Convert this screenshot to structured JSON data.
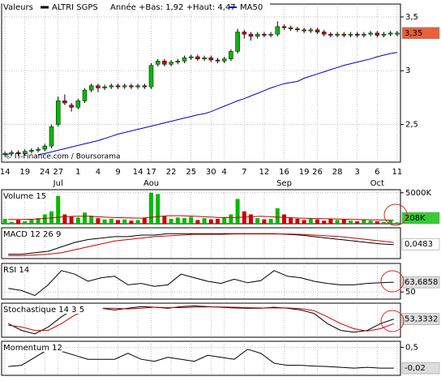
{
  "chart_data": [
    {
      "type": "candlestick",
      "legend_label": "Valeurs",
      "name": "ALTRI SGPS",
      "color": "#000000",
      "range_note": "Année +Bas: 1,92 +Haut: 4,47",
      "source": "© IT-Finance.com / Boursorama",
      "up_color": "#00bb00",
      "down_color": "#cc0000",
      "grid": true,
      "categories": [
        "14",
        null,
        null,
        "19",
        null,
        null,
        "24",
        null,
        "27",
        null,
        null,
        "1",
        null,
        null,
        "4",
        null,
        null,
        "9",
        null,
        null,
        "14",
        null,
        "17",
        null,
        null,
        "22",
        null,
        null,
        "25",
        null,
        null,
        "30",
        null,
        "4",
        null,
        null,
        "7",
        null,
        null,
        "12",
        null,
        null,
        "16",
        null,
        null,
        "19",
        null,
        "26",
        null,
        null,
        "28",
        null,
        null,
        "3",
        null,
        null,
        "6",
        null,
        null,
        "11"
      ],
      "months": [
        null,
        null,
        null,
        null,
        null,
        null,
        null,
        null,
        "Jul",
        null,
        null,
        null,
        null,
        null,
        null,
        null,
        null,
        null,
        null,
        null,
        null,
        null,
        "Aou",
        null,
        null,
        null,
        null,
        null,
        null,
        null,
        null,
        null,
        null,
        null,
        null,
        null,
        null,
        null,
        null,
        null,
        null,
        null,
        "Sep",
        null,
        null,
        null,
        null,
        null,
        null,
        null,
        null,
        null,
        null,
        null,
        null,
        null,
        "Oct",
        null,
        null,
        null
      ],
      "open": [
        2.22,
        2.23,
        2.24,
        2.23,
        2.25,
        2.26,
        2.27,
        2.3,
        2.5,
        2.72,
        2.68,
        2.66,
        2.72,
        2.82,
        2.86,
        2.84,
        2.85,
        2.86,
        2.85,
        2.86,
        2.85,
        2.86,
        2.85,
        3.06,
        3.09,
        3.06,
        3.08,
        3.09,
        3.12,
        3.13,
        3.11,
        3.12,
        3.1,
        3.09,
        3.11,
        3.18,
        3.36,
        3.34,
        3.32,
        3.34,
        3.33,
        3.34,
        3.41,
        3.4,
        3.39,
        3.38,
        3.37,
        3.38,
        3.36,
        3.34,
        3.33,
        3.34,
        3.33,
        3.34,
        3.33,
        3.34,
        3.35,
        3.33,
        3.34,
        3.34
      ],
      "high": [
        2.25,
        2.26,
        2.26,
        2.27,
        2.28,
        2.29,
        2.32,
        2.5,
        2.76,
        2.78,
        2.7,
        2.74,
        2.84,
        2.88,
        2.88,
        2.87,
        2.88,
        2.88,
        2.88,
        2.88,
        2.88,
        2.88,
        3.07,
        3.11,
        3.11,
        3.1,
        3.11,
        3.14,
        3.15,
        3.15,
        3.14,
        3.14,
        3.12,
        3.13,
        3.2,
        3.39,
        3.38,
        3.36,
        3.36,
        3.36,
        3.36,
        3.46,
        3.43,
        3.42,
        3.41,
        3.4,
        3.4,
        3.4,
        3.38,
        3.36,
        3.36,
        3.36,
        3.36,
        3.36,
        3.36,
        3.37,
        3.37,
        3.36,
        3.37,
        3.37
      ],
      "low": [
        2.2,
        2.21,
        2.21,
        2.21,
        2.23,
        2.24,
        2.25,
        2.28,
        2.48,
        2.68,
        2.62,
        2.64,
        2.7,
        2.8,
        2.8,
        2.82,
        2.83,
        2.83,
        2.83,
        2.83,
        2.83,
        2.83,
        2.83,
        3.04,
        3.04,
        3.04,
        3.06,
        3.07,
        3.1,
        3.09,
        3.09,
        3.08,
        3.07,
        3.07,
        3.09,
        3.16,
        3.3,
        3.28,
        3.3,
        3.31,
        3.31,
        3.32,
        3.38,
        3.37,
        3.36,
        3.35,
        3.35,
        3.34,
        3.32,
        3.31,
        3.31,
        3.31,
        3.31,
        3.31,
        3.31,
        3.32,
        3.31,
        3.31,
        3.32,
        3.32
      ],
      "close": [
        2.23,
        2.24,
        2.23,
        2.25,
        2.26,
        2.27,
        2.3,
        2.48,
        2.72,
        2.7,
        2.66,
        2.72,
        2.82,
        2.86,
        2.84,
        2.85,
        2.86,
        2.85,
        2.86,
        2.85,
        2.86,
        2.85,
        3.05,
        3.09,
        3.06,
        3.08,
        3.09,
        3.12,
        3.13,
        3.11,
        3.12,
        3.1,
        3.09,
        3.11,
        3.18,
        3.36,
        3.34,
        3.32,
        3.34,
        3.33,
        3.34,
        3.41,
        3.4,
        3.39,
        3.38,
        3.37,
        3.38,
        3.36,
        3.34,
        3.33,
        3.34,
        3.33,
        3.34,
        3.33,
        3.34,
        3.35,
        3.33,
        3.34,
        3.35,
        3.35
      ],
      "series": [
        {
          "name": "MA50",
          "color": "#0000cc",
          "values": [
            null,
            null,
            null,
            null,
            null,
            2.22,
            2.23,
            2.245,
            2.26,
            2.275,
            2.29,
            2.305,
            2.32,
            2.335,
            2.35,
            2.37,
            2.39,
            2.41,
            2.425,
            2.44,
            2.455,
            2.47,
            2.485,
            2.5,
            2.515,
            2.53,
            2.545,
            2.56,
            2.575,
            2.59,
            2.6,
            2.62,
            2.645,
            2.67,
            2.695,
            2.72,
            2.74,
            2.765,
            2.79,
            2.815,
            2.84,
            2.86,
            2.88,
            2.89,
            2.9,
            2.93,
            2.95,
            2.97,
            2.99,
            3.01,
            3.03,
            3.05,
            3.065,
            3.08,
            3.095,
            3.11,
            3.13,
            3.145,
            3.16,
            3.17
          ]
        }
      ],
      "ylim": [
        2.15,
        3.62
      ],
      "yticks": [
        {
          "value": 2.5,
          "label": "2,5"
        },
        {
          "value": 3,
          "label": "3"
        },
        {
          "value": 3.5,
          "label": "3,5"
        }
      ],
      "last": {
        "value": 3.35,
        "label": "3,35"
      },
      "last_color": "#e8603c"
    },
    {
      "type": "bar",
      "title": "Volume 15",
      "grid": true,
      "values": [
        800,
        300,
        600,
        400,
        700,
        900,
        1500,
        2000,
        4500,
        1500,
        1200,
        1000,
        1800,
        1300,
        900,
        700,
        800,
        600,
        700,
        500,
        600,
        900,
        5000,
        4800,
        1200,
        800,
        1000,
        900,
        1100,
        600,
        900,
        700,
        800,
        1000,
        1500,
        4000,
        2000,
        1500,
        900,
        700,
        800,
        2500,
        1500,
        1000,
        800,
        600,
        900,
        700,
        500,
        800,
        600,
        700,
        500,
        400,
        600,
        500,
        400,
        300,
        500,
        208
      ],
      "series": [
        {
          "color": "#cc0000",
          "values": [
            700,
            700,
            750,
            900,
            1100,
            1200,
            1200,
            1100,
            1000,
            950,
            900,
            1100,
            1300,
            1300,
            1200,
            1100,
            1000,
            1000,
            1100,
            1200,
            1100,
            1000,
            900,
            850,
            800,
            750,
            700,
            650,
            600,
            550
          ]
        }
      ],
      "ylim": [
        0,
        5500
      ],
      "yticks": [
        {
          "value": 5000,
          "label": "5000K"
        }
      ],
      "last": {
        "value": 208,
        "label": "208K"
      },
      "last_color": "#33cc33"
    },
    {
      "type": "line",
      "title": "MACD 12 26 9",
      "grid": true,
      "series": [
        {
          "color": "#000000",
          "values": [
            -0.02,
            -0.02,
            -0.01,
            0.0,
            0.03,
            0.06,
            0.08,
            0.09,
            0.1,
            0.1,
            0.11,
            0.11,
            0.12,
            0.12,
            0.12,
            0.12,
            0.12,
            0.12,
            0.12,
            0.12,
            0.12,
            0.115,
            0.11,
            0.1,
            0.09,
            0.08,
            0.07,
            0.06,
            0.05,
            0.045
          ]
        },
        {
          "color": "#cc0000",
          "values": [
            -0.03,
            -0.03,
            -0.025,
            -0.02,
            -0.01,
            0.01,
            0.03,
            0.05,
            0.07,
            0.08,
            0.09,
            0.1,
            0.105,
            0.11,
            0.115,
            0.115,
            0.115,
            0.118,
            0.118,
            0.118,
            0.118,
            0.118,
            0.115,
            0.11,
            0.105,
            0.1,
            0.09,
            0.08,
            0.07,
            0.06
          ]
        }
      ],
      "ylim": [
        -0.05,
        0.16
      ],
      "yticks": [],
      "last": {
        "value": 0.0483,
        "label": "0,0483"
      },
      "last_color": "#ffffff"
    },
    {
      "type": "line",
      "title": "RSI 14",
      "grid": true,
      "series": [
        {
          "color": "#000000",
          "values": [
            55,
            52,
            45,
            60,
            80,
            75,
            65,
            70,
            72,
            60,
            62,
            58,
            60,
            75,
            70,
            65,
            62,
            68,
            63,
            66,
            80,
            72,
            70,
            65,
            62,
            60,
            60,
            62,
            63,
            63.7
          ]
        }
      ],
      "ylim": [
        40,
        90
      ],
      "yticks": [
        50
      ],
      "last": {
        "value": 63.6858,
        "label": "63,6858"
      },
      "last_color": "#dddddd"
    },
    {
      "type": "line",
      "title": "Stochastique 14 3 5",
      "grid": true,
      "series": [
        {
          "color": "#000000",
          "values": [
            40,
            20,
            10,
            30,
            60,
            85,
            90,
            85,
            80,
            85,
            90,
            88,
            85,
            90,
            92,
            90,
            88,
            86,
            85,
            85,
            88,
            85,
            80,
            70,
            40,
            20,
            15,
            20,
            40,
            53.3
          ]
        },
        {
          "color": "#cc0000",
          "values": [
            35,
            30,
            20,
            20,
            40,
            65,
            80,
            85,
            85,
            83,
            85,
            88,
            87,
            87,
            88,
            89,
            89,
            88,
            87,
            86,
            86,
            86,
            84,
            78,
            60,
            40,
            25,
            18,
            25,
            40
          ]
        }
      ],
      "ylim": [
        0,
        100
      ],
      "yticks": [],
      "last": {
        "value": 53.3332,
        "label": "53,3332"
      },
      "last_color": "#dddddd"
    },
    {
      "type": "line",
      "title": "Momentum 12",
      "grid": true,
      "series": [
        {
          "color": "#000000",
          "values": [
            0.02,
            0.05,
            0.25,
            0.45,
            0.4,
            0.3,
            0.2,
            0.2,
            0.2,
            0.35,
            0.2,
            0.15,
            0.25,
            0.2,
            0.15,
            0.3,
            0.25,
            0.2,
            0.45,
            0.35,
            0.1,
            0.05,
            0.05,
            0.03,
            0.02,
            0.0,
            -0.02,
            0.0,
            -0.02,
            -0.02
          ]
        }
      ],
      "ylim": [
        -0.2,
        0.65
      ],
      "yticks": [
        {
          "value": 0.5,
          "label": "0,5"
        }
      ],
      "last": {
        "value": -0.02,
        "label": "-0,02"
      },
      "last_color": "#dddddd"
    }
  ]
}
